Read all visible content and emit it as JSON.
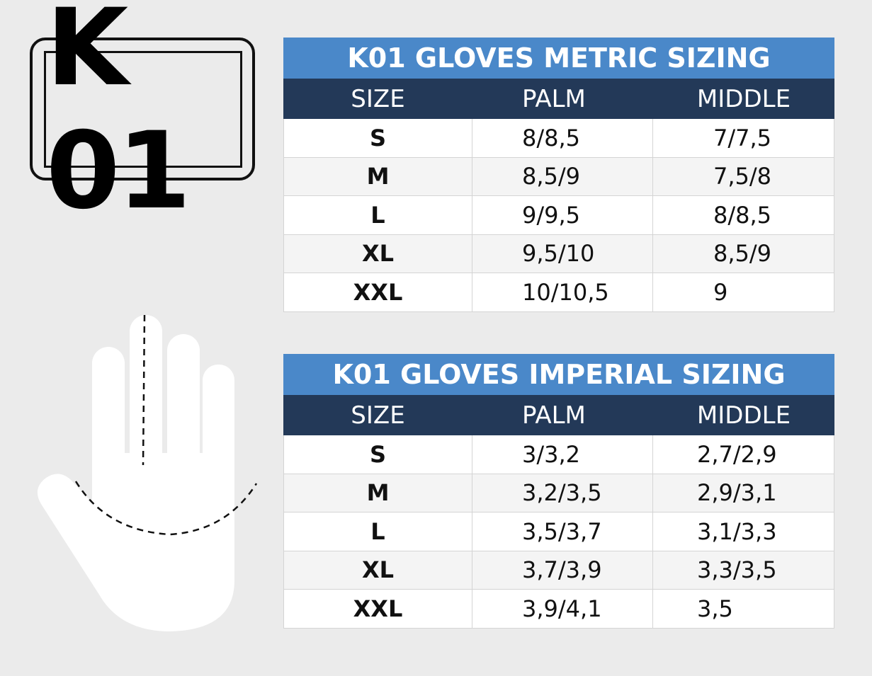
{
  "logo": "K 01",
  "tables": [
    {
      "title": "K01 GLOVES METRIC SIZING",
      "headers": [
        "SIZE",
        "PALM",
        "MIDDLE"
      ],
      "rows": [
        [
          "S",
          "8/8,5",
          "7/7,5"
        ],
        [
          "M",
          "8,5/9",
          "7,5/8"
        ],
        [
          "L",
          "9/9,5",
          "8/8,5"
        ],
        [
          "XL",
          "9,5/10",
          "8,5/9"
        ],
        [
          "XXL",
          "10/10,5",
          "9"
        ]
      ]
    },
    {
      "title": "K01 GLOVES IMPERIAL SIZING",
      "headers": [
        "SIZE",
        "PALM",
        "MIDDLE"
      ],
      "rows": [
        [
          "S",
          "3/3,2",
          "2,7/2,9"
        ],
        [
          "M",
          "3,2/3,5",
          "2,9/3,1"
        ],
        [
          "L",
          "3,5/3,7",
          "3,1/3,3"
        ],
        [
          "XL",
          "3,7/3,9",
          "3,3/3,5"
        ],
        [
          "XXL",
          "3,9/4,1",
          "3,5"
        ]
      ]
    }
  ]
}
